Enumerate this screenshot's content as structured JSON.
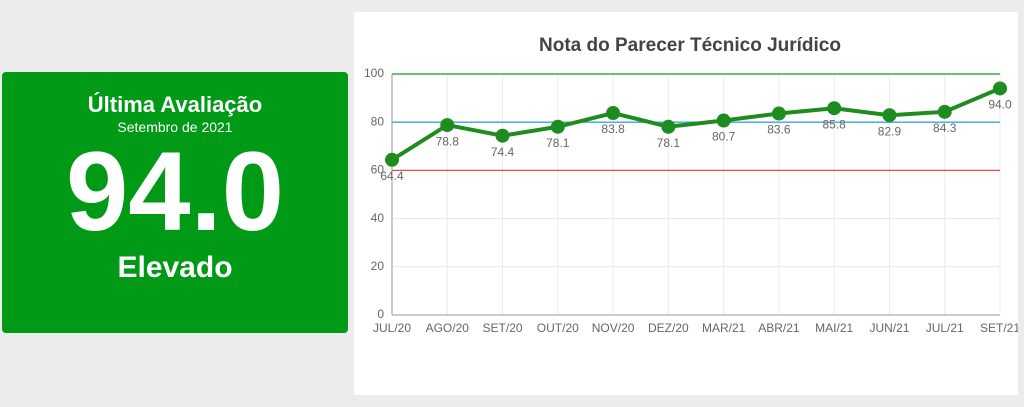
{
  "card": {
    "title": "Última Avaliação",
    "subtitle": "Setembro de 2021",
    "score": "94.0",
    "level": "Elevado"
  },
  "chart_data": {
    "type": "line",
    "title": "Nota do Parecer Técnico Jurídico",
    "categories": [
      "JUL/20",
      "AGO/20",
      "SET/20",
      "OUT/20",
      "NOV/20",
      "DEZ/20",
      "MAR/21",
      "ABR/21",
      "MAI/21",
      "JUN/21",
      "JUL/21",
      "SET/21"
    ],
    "values": [
      64.4,
      78.8,
      74.4,
      78.1,
      83.8,
      78.1,
      80.7,
      83.6,
      85.8,
      82.9,
      84.3,
      94.0
    ],
    "value_labels": [
      "64.4",
      "78.8",
      "74.4",
      "78.1",
      "83.8",
      "78.1",
      "80.7",
      "83.6",
      "85.8",
      "82.9",
      "84.3",
      "94.0"
    ],
    "color": "#1e8c1e",
    "ylim": [
      0,
      100
    ],
    "yticks": [
      0,
      20,
      40,
      60,
      80,
      100
    ],
    "grid": true,
    "reference_lines": [
      {
        "value": 100,
        "color": "#1a9a1a"
      },
      {
        "value": 80,
        "color": "#3aa7dc"
      },
      {
        "value": 60,
        "color": "#e05050"
      }
    ]
  }
}
